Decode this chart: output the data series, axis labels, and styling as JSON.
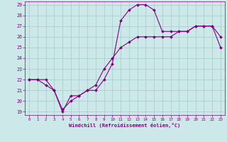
{
  "xlabel": "Windchill (Refroidissement éolien,°C)",
  "line_color": "#800080",
  "bg_color": "#cce8e8",
  "grid_color": "#aacfcf",
  "hours": [
    0,
    1,
    2,
    3,
    4,
    5,
    6,
    7,
    8,
    9,
    10,
    11,
    12,
    13,
    14,
    15,
    16,
    17,
    18,
    19,
    20,
    21,
    22,
    23
  ],
  "temp1": [
    22,
    22,
    22,
    21,
    19,
    20.5,
    20.5,
    21,
    21,
    22,
    23.5,
    27.5,
    28.5,
    29,
    29,
    28.5,
    26.5,
    26.5,
    26.5,
    26.5,
    27,
    27,
    27,
    26
  ],
  "temp2": [
    22,
    22,
    21.5,
    21,
    19.2,
    20,
    20.5,
    21,
    21.5,
    23,
    24,
    25,
    25.5,
    26,
    26,
    26,
    26,
    26,
    26.5,
    26.5,
    27,
    27,
    27,
    25
  ],
  "ylim": [
    19,
    29
  ],
  "xlim": [
    0,
    23
  ],
  "yticks": [
    19,
    20,
    21,
    22,
    23,
    24,
    25,
    26,
    27,
    28,
    29
  ],
  "xticks": [
    0,
    1,
    2,
    3,
    4,
    5,
    6,
    7,
    8,
    9,
    10,
    11,
    12,
    13,
    14,
    15,
    16,
    17,
    18,
    19,
    20,
    21,
    22,
    23
  ]
}
